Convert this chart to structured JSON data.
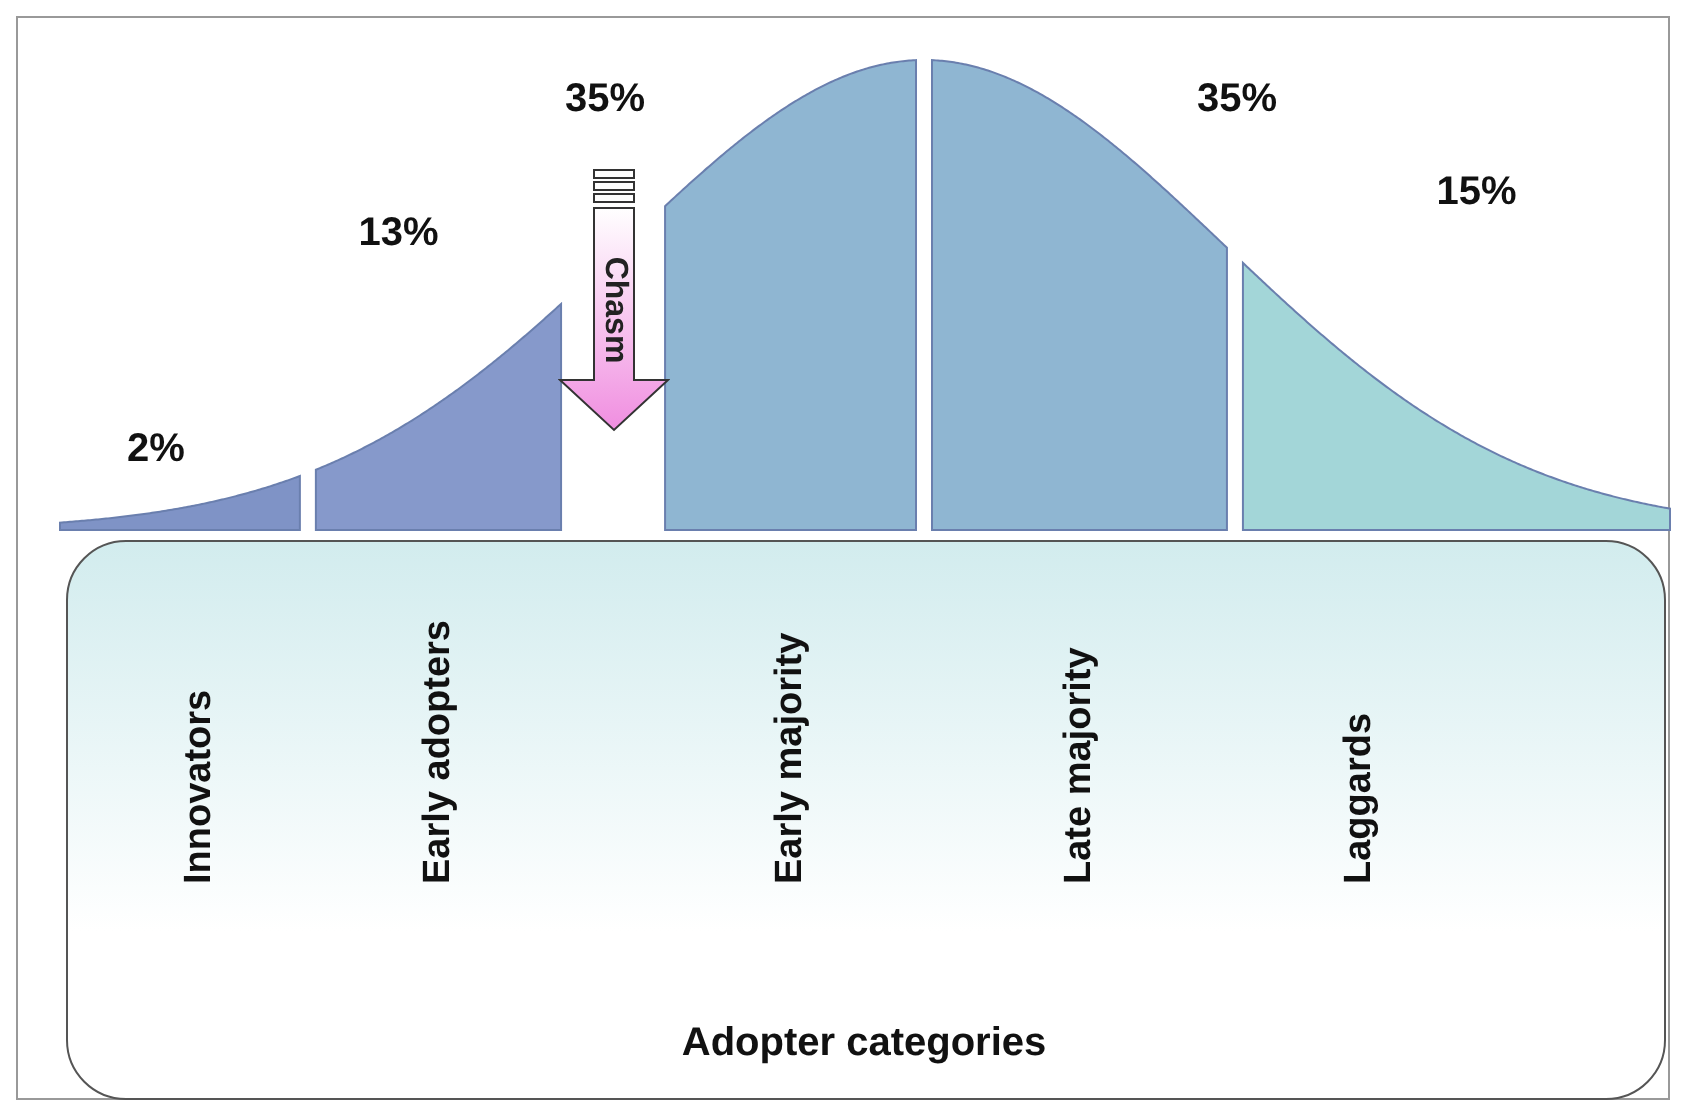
{
  "chart_data": {
    "type": "other",
    "categories": [
      "Innovators",
      "Early adopters",
      "Early majority",
      "Late majority",
      "Laggards"
    ],
    "values": [
      2,
      13,
      35,
      35,
      15
    ],
    "colors": [
      "#7f93c6",
      "#8699cb",
      "#8fb6d2",
      "#8fb6d2",
      "#a3d6d8"
    ],
    "value_labels": [
      "2%",
      "13%",
      "35%",
      "35%",
      "15%"
    ],
    "xlabel": "Adopter categories",
    "annotations": [
      "Chasm"
    ]
  }
}
